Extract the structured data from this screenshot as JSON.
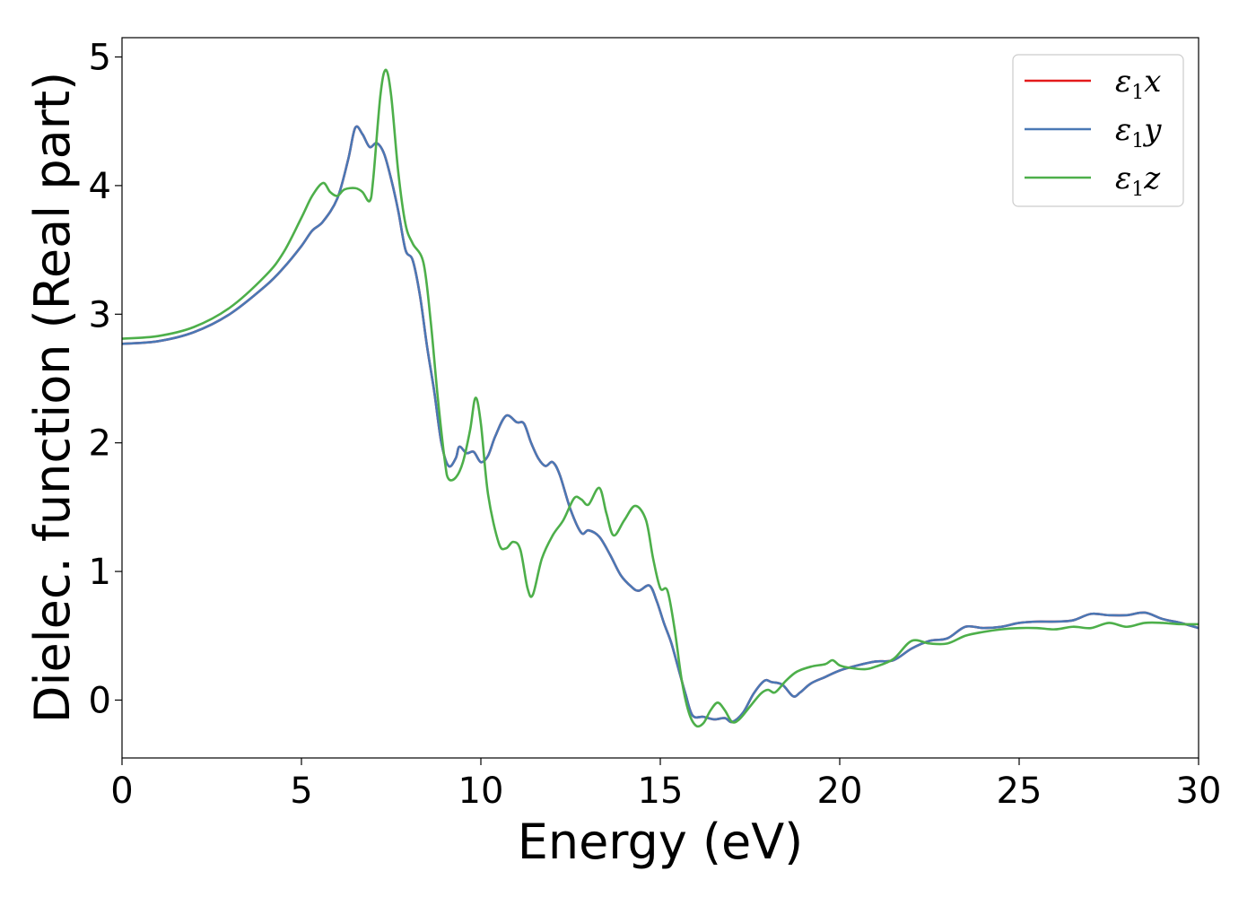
{
  "chart_data": {
    "type": "line",
    "title": "",
    "xlabel": "Energy (eV)",
    "ylabel": "Dielec. function (Real part)",
    "xlim": [
      0,
      30
    ],
    "ylim": [
      -0.45,
      5.15
    ],
    "xticks": [
      0,
      5,
      10,
      15,
      20,
      25,
      30
    ],
    "yticks": [
      0,
      1,
      2,
      3,
      4,
      5
    ],
    "grid": false,
    "legend_position": "top-right",
    "series": [
      {
        "name": "ε1x",
        "legend_main": "ε",
        "legend_sub": "1",
        "legend_suffix": "x",
        "color": "#e41a1c",
        "points": [
          [
            0,
            2.77
          ],
          [
            1,
            2.79
          ],
          [
            2,
            2.86
          ],
          [
            3,
            3.0
          ],
          [
            4,
            3.22
          ],
          [
            4.5,
            3.36
          ],
          [
            5,
            3.53
          ],
          [
            5.3,
            3.65
          ],
          [
            5.6,
            3.72
          ],
          [
            6.0,
            3.9
          ],
          [
            6.3,
            4.2
          ],
          [
            6.5,
            4.45
          ],
          [
            6.7,
            4.4
          ],
          [
            6.9,
            4.3
          ],
          [
            7.1,
            4.33
          ],
          [
            7.3,
            4.25
          ],
          [
            7.5,
            4.05
          ],
          [
            7.7,
            3.8
          ],
          [
            7.9,
            3.5
          ],
          [
            8.1,
            3.42
          ],
          [
            8.3,
            3.15
          ],
          [
            8.5,
            2.75
          ],
          [
            8.7,
            2.4
          ],
          [
            8.9,
            2.0
          ],
          [
            9.1,
            1.82
          ],
          [
            9.3,
            1.88
          ],
          [
            9.4,
            1.97
          ],
          [
            9.6,
            1.92
          ],
          [
            9.8,
            1.93
          ],
          [
            10.0,
            1.85
          ],
          [
            10.2,
            1.9
          ],
          [
            10.4,
            2.05
          ],
          [
            10.7,
            2.21
          ],
          [
            11.0,
            2.16
          ],
          [
            11.2,
            2.15
          ],
          [
            11.4,
            2.0
          ],
          [
            11.6,
            1.88
          ],
          [
            11.8,
            1.82
          ],
          [
            12.0,
            1.85
          ],
          [
            12.2,
            1.75
          ],
          [
            12.5,
            1.48
          ],
          [
            12.8,
            1.3
          ],
          [
            13.0,
            1.32
          ],
          [
            13.3,
            1.27
          ],
          [
            13.6,
            1.13
          ],
          [
            13.9,
            0.97
          ],
          [
            14.2,
            0.88
          ],
          [
            14.4,
            0.85
          ],
          [
            14.7,
            0.89
          ],
          [
            14.9,
            0.77
          ],
          [
            15.1,
            0.6
          ],
          [
            15.3,
            0.45
          ],
          [
            15.5,
            0.25
          ],
          [
            15.7,
            0.05
          ],
          [
            15.9,
            -0.12
          ],
          [
            16.2,
            -0.13
          ],
          [
            16.5,
            -0.15
          ],
          [
            16.8,
            -0.14
          ],
          [
            17.0,
            -0.17
          ],
          [
            17.3,
            -0.1
          ],
          [
            17.6,
            0.05
          ],
          [
            17.9,
            0.15
          ],
          [
            18.1,
            0.14
          ],
          [
            18.4,
            0.12
          ],
          [
            18.7,
            0.03
          ],
          [
            18.9,
            0.06
          ],
          [
            19.2,
            0.13
          ],
          [
            19.6,
            0.18
          ],
          [
            20.0,
            0.23
          ],
          [
            20.5,
            0.27
          ],
          [
            21.0,
            0.3
          ],
          [
            21.5,
            0.31
          ],
          [
            22.0,
            0.4
          ],
          [
            22.5,
            0.46
          ],
          [
            23.0,
            0.48
          ],
          [
            23.5,
            0.57
          ],
          [
            24.0,
            0.56
          ],
          [
            24.5,
            0.57
          ],
          [
            25.0,
            0.6
          ],
          [
            25.5,
            0.61
          ],
          [
            26.0,
            0.61
          ],
          [
            26.5,
            0.62
          ],
          [
            27.0,
            0.67
          ],
          [
            27.5,
            0.66
          ],
          [
            28.0,
            0.66
          ],
          [
            28.5,
            0.68
          ],
          [
            29.0,
            0.63
          ],
          [
            29.5,
            0.6
          ],
          [
            30,
            0.56
          ]
        ]
      },
      {
        "name": "ε1y",
        "legend_main": "ε",
        "legend_sub": "1",
        "legend_suffix": "y",
        "color": "#4a78b5",
        "points": [
          [
            0,
            2.77
          ],
          [
            1,
            2.79
          ],
          [
            2,
            2.86
          ],
          [
            3,
            3.0
          ],
          [
            4,
            3.22
          ],
          [
            4.5,
            3.36
          ],
          [
            5,
            3.53
          ],
          [
            5.3,
            3.65
          ],
          [
            5.6,
            3.72
          ],
          [
            6.0,
            3.9
          ],
          [
            6.3,
            4.2
          ],
          [
            6.5,
            4.45
          ],
          [
            6.7,
            4.4
          ],
          [
            6.9,
            4.3
          ],
          [
            7.1,
            4.33
          ],
          [
            7.3,
            4.25
          ],
          [
            7.5,
            4.05
          ],
          [
            7.7,
            3.8
          ],
          [
            7.9,
            3.5
          ],
          [
            8.1,
            3.42
          ],
          [
            8.3,
            3.15
          ],
          [
            8.5,
            2.75
          ],
          [
            8.7,
            2.4
          ],
          [
            8.9,
            2.0
          ],
          [
            9.1,
            1.82
          ],
          [
            9.3,
            1.88
          ],
          [
            9.4,
            1.97
          ],
          [
            9.6,
            1.92
          ],
          [
            9.8,
            1.93
          ],
          [
            10.0,
            1.85
          ],
          [
            10.2,
            1.9
          ],
          [
            10.4,
            2.05
          ],
          [
            10.7,
            2.21
          ],
          [
            11.0,
            2.16
          ],
          [
            11.2,
            2.15
          ],
          [
            11.4,
            2.0
          ],
          [
            11.6,
            1.88
          ],
          [
            11.8,
            1.82
          ],
          [
            12.0,
            1.85
          ],
          [
            12.2,
            1.75
          ],
          [
            12.5,
            1.48
          ],
          [
            12.8,
            1.3
          ],
          [
            13.0,
            1.32
          ],
          [
            13.3,
            1.27
          ],
          [
            13.6,
            1.13
          ],
          [
            13.9,
            0.97
          ],
          [
            14.2,
            0.88
          ],
          [
            14.4,
            0.85
          ],
          [
            14.7,
            0.89
          ],
          [
            14.9,
            0.77
          ],
          [
            15.1,
            0.6
          ],
          [
            15.3,
            0.45
          ],
          [
            15.5,
            0.25
          ],
          [
            15.7,
            0.05
          ],
          [
            15.9,
            -0.12
          ],
          [
            16.2,
            -0.13
          ],
          [
            16.5,
            -0.15
          ],
          [
            16.8,
            -0.14
          ],
          [
            17.0,
            -0.17
          ],
          [
            17.3,
            -0.1
          ],
          [
            17.6,
            0.05
          ],
          [
            17.9,
            0.15
          ],
          [
            18.1,
            0.14
          ],
          [
            18.4,
            0.12
          ],
          [
            18.7,
            0.03
          ],
          [
            18.9,
            0.06
          ],
          [
            19.2,
            0.13
          ],
          [
            19.6,
            0.18
          ],
          [
            20.0,
            0.23
          ],
          [
            20.5,
            0.27
          ],
          [
            21.0,
            0.3
          ],
          [
            21.5,
            0.31
          ],
          [
            22.0,
            0.4
          ],
          [
            22.5,
            0.46
          ],
          [
            23.0,
            0.48
          ],
          [
            23.5,
            0.57
          ],
          [
            24.0,
            0.56
          ],
          [
            24.5,
            0.57
          ],
          [
            25.0,
            0.6
          ],
          [
            25.5,
            0.61
          ],
          [
            26.0,
            0.61
          ],
          [
            26.5,
            0.62
          ],
          [
            27.0,
            0.67
          ],
          [
            27.5,
            0.66
          ],
          [
            28.0,
            0.66
          ],
          [
            28.5,
            0.68
          ],
          [
            29.0,
            0.63
          ],
          [
            29.5,
            0.6
          ],
          [
            30,
            0.56
          ]
        ]
      },
      {
        "name": "ε1z",
        "legend_main": "ε",
        "legend_sub": "1",
        "legend_suffix": "z",
        "color": "#4daf4a",
        "points": [
          [
            0,
            2.81
          ],
          [
            1,
            2.83
          ],
          [
            2,
            2.9
          ],
          [
            3,
            3.05
          ],
          [
            4,
            3.3
          ],
          [
            4.5,
            3.48
          ],
          [
            5,
            3.75
          ],
          [
            5.3,
            3.92
          ],
          [
            5.6,
            4.02
          ],
          [
            5.8,
            3.95
          ],
          [
            6.0,
            3.92
          ],
          [
            6.2,
            3.97
          ],
          [
            6.5,
            3.98
          ],
          [
            6.7,
            3.95
          ],
          [
            6.9,
            3.88
          ],
          [
            7.0,
            4.05
          ],
          [
            7.2,
            4.7
          ],
          [
            7.35,
            4.9
          ],
          [
            7.5,
            4.7
          ],
          [
            7.7,
            4.1
          ],
          [
            7.9,
            3.7
          ],
          [
            8.1,
            3.55
          ],
          [
            8.4,
            3.4
          ],
          [
            8.6,
            2.95
          ],
          [
            8.8,
            2.35
          ],
          [
            9.0,
            1.85
          ],
          [
            9.1,
            1.72
          ],
          [
            9.3,
            1.73
          ],
          [
            9.5,
            1.85
          ],
          [
            9.7,
            2.1
          ],
          [
            9.85,
            2.35
          ],
          [
            10.0,
            2.15
          ],
          [
            10.2,
            1.6
          ],
          [
            10.5,
            1.22
          ],
          [
            10.7,
            1.18
          ],
          [
            10.9,
            1.23
          ],
          [
            11.1,
            1.17
          ],
          [
            11.3,
            0.87
          ],
          [
            11.45,
            0.82
          ],
          [
            11.7,
            1.1
          ],
          [
            12.0,
            1.28
          ],
          [
            12.3,
            1.4
          ],
          [
            12.6,
            1.57
          ],
          [
            12.8,
            1.56
          ],
          [
            13.0,
            1.52
          ],
          [
            13.3,
            1.65
          ],
          [
            13.5,
            1.45
          ],
          [
            13.7,
            1.28
          ],
          [
            14.0,
            1.4
          ],
          [
            14.3,
            1.51
          ],
          [
            14.6,
            1.4
          ],
          [
            14.8,
            1.1
          ],
          [
            15.0,
            0.87
          ],
          [
            15.2,
            0.85
          ],
          [
            15.4,
            0.55
          ],
          [
            15.6,
            0.15
          ],
          [
            15.8,
            -0.1
          ],
          [
            16.0,
            -0.2
          ],
          [
            16.2,
            -0.18
          ],
          [
            16.4,
            -0.08
          ],
          [
            16.6,
            -0.02
          ],
          [
            16.8,
            -0.08
          ],
          [
            17.0,
            -0.17
          ],
          [
            17.2,
            -0.15
          ],
          [
            17.5,
            -0.05
          ],
          [
            17.8,
            0.05
          ],
          [
            18.0,
            0.08
          ],
          [
            18.2,
            0.06
          ],
          [
            18.5,
            0.15
          ],
          [
            18.8,
            0.22
          ],
          [
            19.2,
            0.26
          ],
          [
            19.6,
            0.28
          ],
          [
            19.8,
            0.31
          ],
          [
            20.0,
            0.27
          ],
          [
            20.3,
            0.25
          ],
          [
            20.7,
            0.24
          ],
          [
            21.0,
            0.26
          ],
          [
            21.5,
            0.32
          ],
          [
            22.0,
            0.46
          ],
          [
            22.5,
            0.44
          ],
          [
            23.0,
            0.44
          ],
          [
            23.5,
            0.5
          ],
          [
            24.0,
            0.53
          ],
          [
            24.5,
            0.55
          ],
          [
            25.0,
            0.56
          ],
          [
            25.5,
            0.56
          ],
          [
            26.0,
            0.55
          ],
          [
            26.5,
            0.57
          ],
          [
            27.0,
            0.56
          ],
          [
            27.5,
            0.6
          ],
          [
            28.0,
            0.57
          ],
          [
            28.5,
            0.6
          ],
          [
            29.0,
            0.6
          ],
          [
            29.5,
            0.59
          ],
          [
            30,
            0.59
          ]
        ]
      }
    ]
  }
}
